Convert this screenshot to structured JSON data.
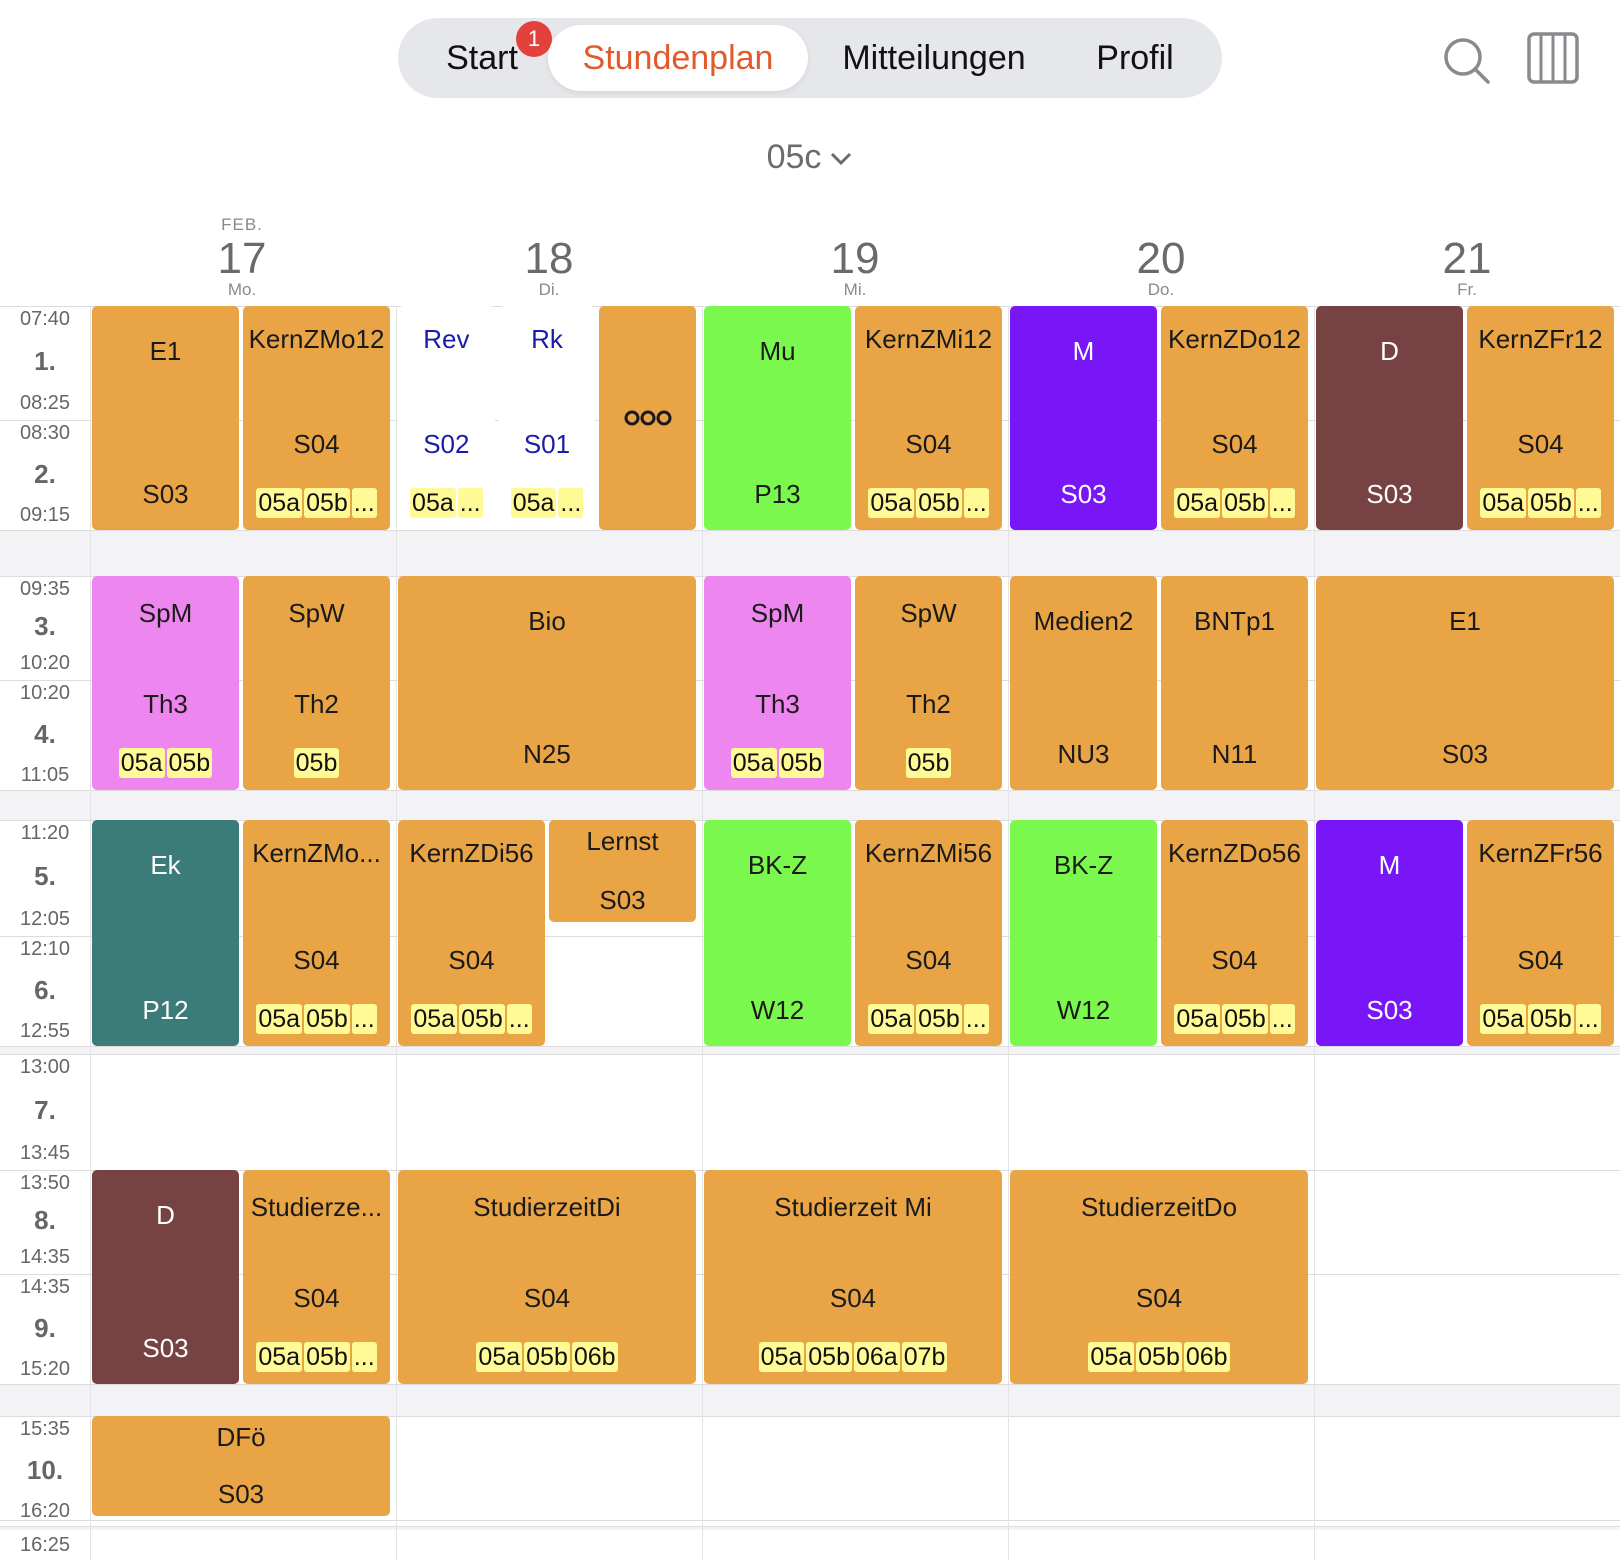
{
  "nav": {
    "tabs": [
      {
        "label": "Start",
        "badge": "1"
      },
      {
        "label": "Stundenplan",
        "active": true
      },
      {
        "label": "Mitteilungen"
      },
      {
        "label": "Profil"
      }
    ],
    "search_icon": "search-icon",
    "view_icon": "week-columns-icon"
  },
  "class_selector": {
    "value": "05c",
    "icon": "chevron-down-icon"
  },
  "days": [
    {
      "month": "FEB.",
      "day": "17",
      "weekday": "Mo."
    },
    {
      "month": "",
      "day": "18",
      "weekday": "Di."
    },
    {
      "month": "",
      "day": "19",
      "weekday": "Mi."
    },
    {
      "month": "",
      "day": "20",
      "weekday": "Do."
    },
    {
      "month": "",
      "day": "21",
      "weekday": "Fr."
    }
  ],
  "periods": [
    {
      "num": "1.",
      "start": "07:40",
      "end": "08:25"
    },
    {
      "num": "2.",
      "start": "08:30",
      "end": "09:15"
    },
    {
      "num": "3.",
      "start": "09:35",
      "end": "10:20"
    },
    {
      "num": "4.",
      "start": "10:20",
      "end": "11:05"
    },
    {
      "num": "5.",
      "start": "11:20",
      "end": "12:05"
    },
    {
      "num": "6.",
      "start": "12:10",
      "end": "12:55"
    },
    {
      "num": "7.",
      "start": "13:00",
      "end": "13:45"
    },
    {
      "num": "8.",
      "start": "13:50",
      "end": "14:35"
    },
    {
      "num": "9.",
      "start": "14:35",
      "end": "15:20"
    },
    {
      "num": "10.",
      "start": "15:35",
      "end": "16:20"
    },
    {
      "num": "",
      "start": "16:25",
      "end": ""
    }
  ],
  "colors": {
    "orange": "#e8a445",
    "green": "#7bf84d",
    "purple": "#7916f7",
    "brown": "#774242",
    "pink": "#ee86f0",
    "teal": "#3b7b79",
    "chip": "#fffa96",
    "accent": "#e25a2c",
    "badge": "#e2423b"
  },
  "lessons": [
    {
      "day": 0,
      "sub": 0,
      "subs": 2,
      "from": 0,
      "to": 1,
      "subject": "E1",
      "room": "S03",
      "classes": [],
      "color": "orange"
    },
    {
      "day": 0,
      "sub": 1,
      "subs": 2,
      "from": 0,
      "to": 1,
      "subject": "KernZMo12",
      "room": "S04",
      "classes": [
        "05a",
        "05b",
        "..."
      ],
      "color": "orange"
    },
    {
      "day": 1,
      "sub": 0,
      "subs": 3,
      "from": 0,
      "to": 1,
      "subject": "Rev",
      "room": "S02",
      "classes": [
        "05a",
        "..."
      ],
      "color": "white"
    },
    {
      "day": 1,
      "sub": 1,
      "subs": 3,
      "from": 0,
      "to": 1,
      "subject": "Rk",
      "room": "S01",
      "classes": [
        "05a",
        "..."
      ],
      "color": "white"
    },
    {
      "day": 1,
      "sub": 2,
      "subs": 3,
      "from": 0,
      "to": 1,
      "subject": "",
      "room": "",
      "classes": [],
      "color": "orange",
      "more": true
    },
    {
      "day": 2,
      "sub": 0,
      "subs": 2,
      "from": 0,
      "to": 1,
      "subject": "Mu",
      "room": "P13",
      "classes": [],
      "color": "green"
    },
    {
      "day": 2,
      "sub": 1,
      "subs": 2,
      "from": 0,
      "to": 1,
      "subject": "KernZMi12",
      "room": "S04",
      "classes": [
        "05a",
        "05b",
        "..."
      ],
      "color": "orange"
    },
    {
      "day": 3,
      "sub": 0,
      "subs": 2,
      "from": 0,
      "to": 1,
      "subject": "M",
      "room": "S03",
      "classes": [],
      "color": "purple"
    },
    {
      "day": 3,
      "sub": 1,
      "subs": 2,
      "from": 0,
      "to": 1,
      "subject": "KernZDo12",
      "room": "S04",
      "classes": [
        "05a",
        "05b",
        "..."
      ],
      "color": "orange"
    },
    {
      "day": 4,
      "sub": 0,
      "subs": 2,
      "from": 0,
      "to": 1,
      "subject": "D",
      "room": "S03",
      "classes": [],
      "color": "brown"
    },
    {
      "day": 4,
      "sub": 1,
      "subs": 2,
      "from": 0,
      "to": 1,
      "subject": "KernZFr12",
      "room": "S04",
      "classes": [
        "05a",
        "05b",
        "..."
      ],
      "color": "orange"
    },
    {
      "day": 0,
      "sub": 0,
      "subs": 2,
      "from": 2,
      "to": 3,
      "subject": "SpM",
      "room": "Th3",
      "classes": [
        "05a",
        "05b"
      ],
      "color": "pink"
    },
    {
      "day": 0,
      "sub": 1,
      "subs": 2,
      "from": 2,
      "to": 3,
      "subject": "SpW",
      "room": "Th2",
      "classes": [
        "05b"
      ],
      "color": "orange"
    },
    {
      "day": 1,
      "sub": 0,
      "subs": 1,
      "from": 2,
      "to": 3,
      "subject": "Bio",
      "room": "N25",
      "classes": [],
      "color": "orange"
    },
    {
      "day": 2,
      "sub": 0,
      "subs": 2,
      "from": 2,
      "to": 3,
      "subject": "SpM",
      "room": "Th3",
      "classes": [
        "05a",
        "05b"
      ],
      "color": "pink"
    },
    {
      "day": 2,
      "sub": 1,
      "subs": 2,
      "from": 2,
      "to": 3,
      "subject": "SpW",
      "room": "Th2",
      "classes": [
        "05b"
      ],
      "color": "orange"
    },
    {
      "day": 3,
      "sub": 0,
      "subs": 2,
      "from": 2,
      "to": 3,
      "subject": "Medien2",
      "room": "NU3",
      "classes": [],
      "color": "orange"
    },
    {
      "day": 3,
      "sub": 1,
      "subs": 2,
      "from": 2,
      "to": 3,
      "subject": "BNTp1",
      "room": "N11",
      "classes": [],
      "color": "orange"
    },
    {
      "day": 4,
      "sub": 0,
      "subs": 1,
      "from": 2,
      "to": 3,
      "subject": "E1",
      "room": "S03",
      "classes": [],
      "color": "orange"
    },
    {
      "day": 0,
      "sub": 0,
      "subs": 2,
      "from": 4,
      "to": 5,
      "subject": "Ek",
      "room": "P12",
      "classes": [],
      "color": "teal"
    },
    {
      "day": 0,
      "sub": 1,
      "subs": 2,
      "from": 4,
      "to": 5,
      "subject": "KernZMo...",
      "room": "S04",
      "classes": [
        "05a",
        "05b",
        "..."
      ],
      "color": "orange"
    },
    {
      "day": 1,
      "sub": 0,
      "subs": 2,
      "from": 4,
      "to": 5,
      "subject": "KernZDi56",
      "room": "S04",
      "classes": [
        "05a",
        "05b",
        "..."
      ],
      "color": "orange"
    },
    {
      "day": 1,
      "sub": 1,
      "subs": 2,
      "from": 4,
      "to": 4,
      "subject": "Lernst",
      "room": "S03",
      "classes": [],
      "color": "orange",
      "compact": true
    },
    {
      "day": 2,
      "sub": 0,
      "subs": 2,
      "from": 4,
      "to": 5,
      "subject": "BK-Z",
      "room": "W12",
      "classes": [],
      "color": "green"
    },
    {
      "day": 2,
      "sub": 1,
      "subs": 2,
      "from": 4,
      "to": 5,
      "subject": "KernZMi56",
      "room": "S04",
      "classes": [
        "05a",
        "05b",
        "..."
      ],
      "color": "orange"
    },
    {
      "day": 3,
      "sub": 0,
      "subs": 2,
      "from": 4,
      "to": 5,
      "subject": "BK-Z",
      "room": "W12",
      "classes": [],
      "color": "green"
    },
    {
      "day": 3,
      "sub": 1,
      "subs": 2,
      "from": 4,
      "to": 5,
      "subject": "KernZDo56",
      "room": "S04",
      "classes": [
        "05a",
        "05b",
        "..."
      ],
      "color": "orange"
    },
    {
      "day": 4,
      "sub": 0,
      "subs": 2,
      "from": 4,
      "to": 5,
      "subject": "M",
      "room": "S03",
      "classes": [],
      "color": "purple"
    },
    {
      "day": 4,
      "sub": 1,
      "subs": 2,
      "from": 4,
      "to": 5,
      "subject": "KernZFr56",
      "room": "S04",
      "classes": [
        "05a",
        "05b",
        "..."
      ],
      "color": "orange"
    },
    {
      "day": 0,
      "sub": 0,
      "subs": 2,
      "from": 7,
      "to": 8,
      "subject": "D",
      "room": "S03",
      "classes": [],
      "color": "brown"
    },
    {
      "day": 0,
      "sub": 1,
      "subs": 2,
      "from": 7,
      "to": 8,
      "subject": "Studierze...",
      "room": "S04",
      "classes": [
        "05a",
        "05b",
        "..."
      ],
      "color": "orange"
    },
    {
      "day": 1,
      "sub": 0,
      "subs": 1,
      "from": 7,
      "to": 8,
      "subject": "StudierzeitDi",
      "room": "S04",
      "classes": [
        "05a",
        "05b",
        "06b"
      ],
      "color": "orange"
    },
    {
      "day": 2,
      "sub": 0,
      "subs": 1,
      "from": 7,
      "to": 8,
      "subject": "Studierzeit Mi",
      "room": "S04",
      "classes": [
        "05a",
        "05b",
        "06a",
        "07b"
      ],
      "color": "orange"
    },
    {
      "day": 3,
      "sub": 0,
      "subs": 1,
      "from": 7,
      "to": 8,
      "subject": "StudierzeitDo",
      "room": "S04",
      "classes": [
        "05a",
        "05b",
        "06b"
      ],
      "color": "orange"
    },
    {
      "day": 0,
      "sub": 0,
      "subs": 1,
      "from": 9,
      "to": 9,
      "subject": "DFö",
      "room": "S03",
      "classes": [],
      "color": "orange",
      "compact": true
    }
  ]
}
